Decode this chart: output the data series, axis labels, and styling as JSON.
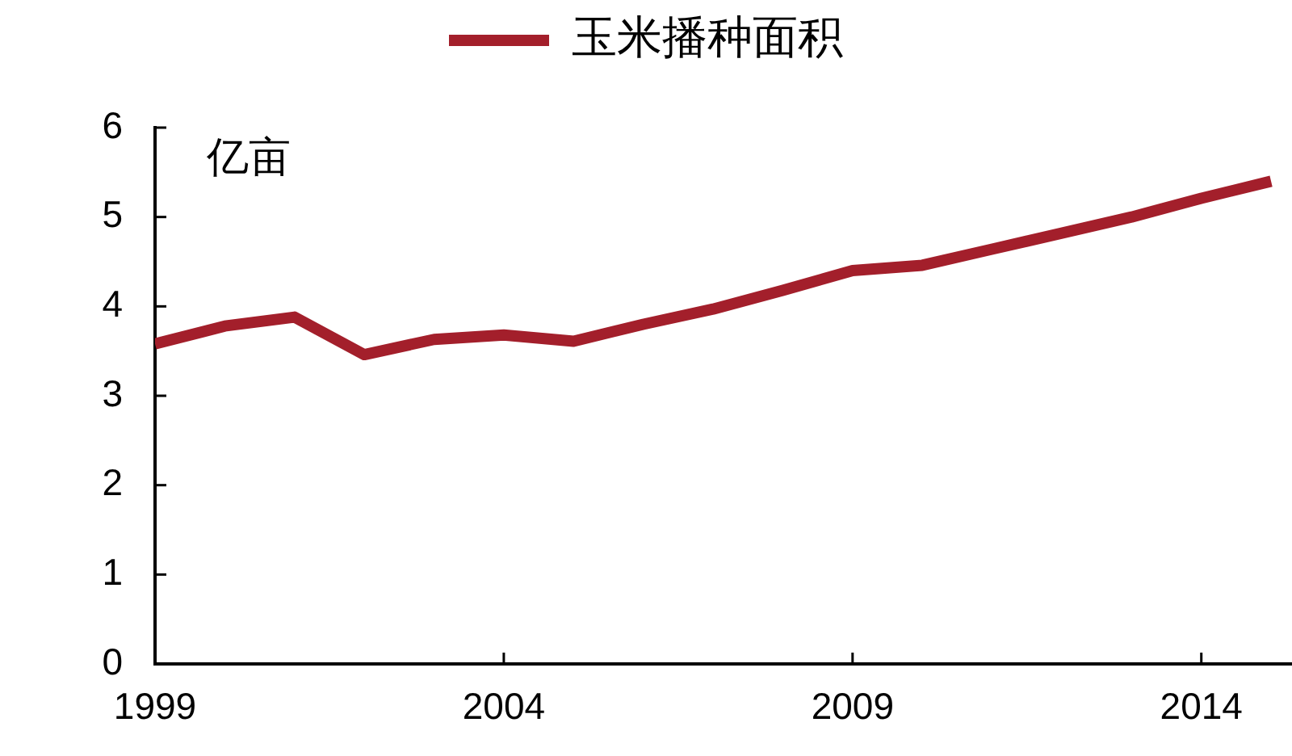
{
  "chart_data": {
    "type": "line",
    "ylabel": "亿亩",
    "x": [
      1999,
      2000,
      2001,
      2002,
      2003,
      2004,
      2005,
      2006,
      2007,
      2008,
      2009,
      2010,
      2011,
      2012,
      2013,
      2014,
      2015
    ],
    "series": [
      {
        "name": "玉米播种面积",
        "color": "#a31f2b",
        "values": [
          3.58,
          3.78,
          3.88,
          3.46,
          3.63,
          3.68,
          3.61,
          3.8,
          3.97,
          4.18,
          4.4,
          4.46,
          4.64,
          4.82,
          5.0,
          5.21,
          5.4
        ]
      }
    ],
    "xlim": [
      1999,
      2015.3
    ],
    "xticks": [
      1999,
      2004,
      2009,
      2014
    ],
    "ylim": [
      0,
      6
    ],
    "yticks": [
      0,
      1,
      2,
      3,
      4,
      5,
      6
    ],
    "legend": "top"
  }
}
